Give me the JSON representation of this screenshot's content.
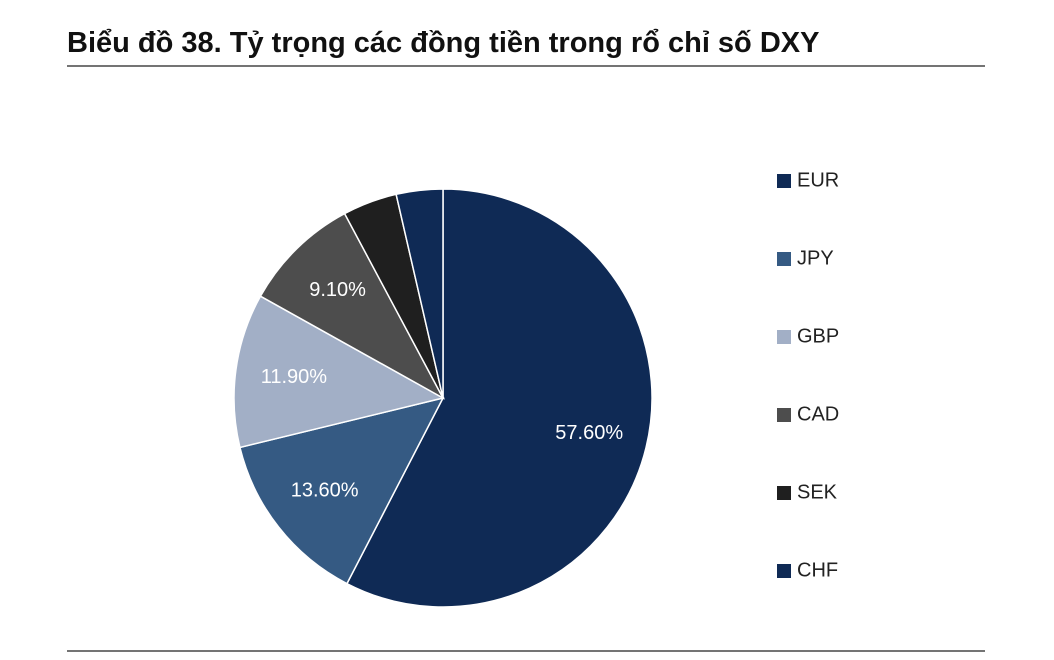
{
  "chart_data": {
    "type": "pie",
    "title": "Biểu đồ 38. Tỷ trọng các đồng tiền trong rổ chỉ số DXY",
    "categories": [
      "EUR",
      "JPY",
      "GBP",
      "CAD",
      "SEK",
      "CHF"
    ],
    "values": [
      57.6,
      13.6,
      11.9,
      9.1,
      4.2,
      3.6
    ],
    "value_labels": [
      "57.60%",
      "13.60%",
      "11.90%",
      "9.10%",
      null,
      null
    ],
    "colors": [
      "#0f2a55",
      "#355a83",
      "#a2afc6",
      "#4d4d4d",
      "#1f1f1f",
      "#0f2a55"
    ],
    "legend": "right"
  }
}
